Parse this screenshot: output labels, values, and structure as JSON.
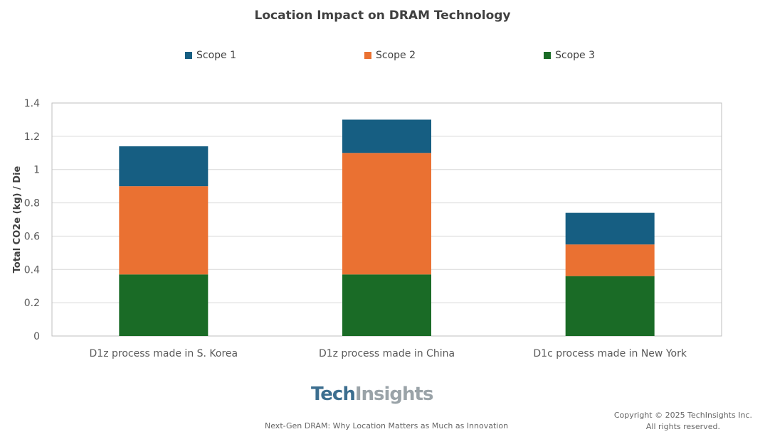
{
  "chart_data": {
    "type": "bar",
    "stacked": true,
    "title": "Location Impact on DRAM Technology",
    "xlabel": "",
    "ylabel": "Total CO2e (kg) / Die",
    "ylim": [
      0,
      1.4
    ],
    "yticks": [
      "0",
      "0.2",
      "0.4",
      "0.6",
      "0.8",
      "1",
      "1.2",
      "1.4"
    ],
    "grid": true,
    "legend_position": "top",
    "categories": [
      "D1z process made in S. Korea",
      "D1z process made in China",
      "D1c process made in New York"
    ],
    "series": [
      {
        "name": "Scope 3",
        "color": "#1a6b26",
        "values": [
          0.37,
          0.37,
          0.36
        ]
      },
      {
        "name": "Scope 2",
        "color": "#ea7132",
        "values": [
          0.53,
          0.73,
          0.19
        ]
      },
      {
        "name": "Scope 1",
        "color": "#165e82",
        "values": [
          0.24,
          0.2,
          0.19
        ]
      }
    ]
  },
  "legend": [
    {
      "name": "Scope 1",
      "color": "#165e82"
    },
    {
      "name": "Scope 2",
      "color": "#ea7132"
    },
    {
      "name": "Scope 3",
      "color": "#1a6b26"
    }
  ],
  "footer": {
    "logo": "TechInsights",
    "logo_part1": "Tech",
    "logo_part2": "Insights",
    "subtitle": "Next-Gen DRAM: Why Location Matters as Much as Innovation",
    "copyright_line1": "Copyright © 2025 TechInsights Inc.",
    "copyright_line2": "All rights reserved."
  }
}
